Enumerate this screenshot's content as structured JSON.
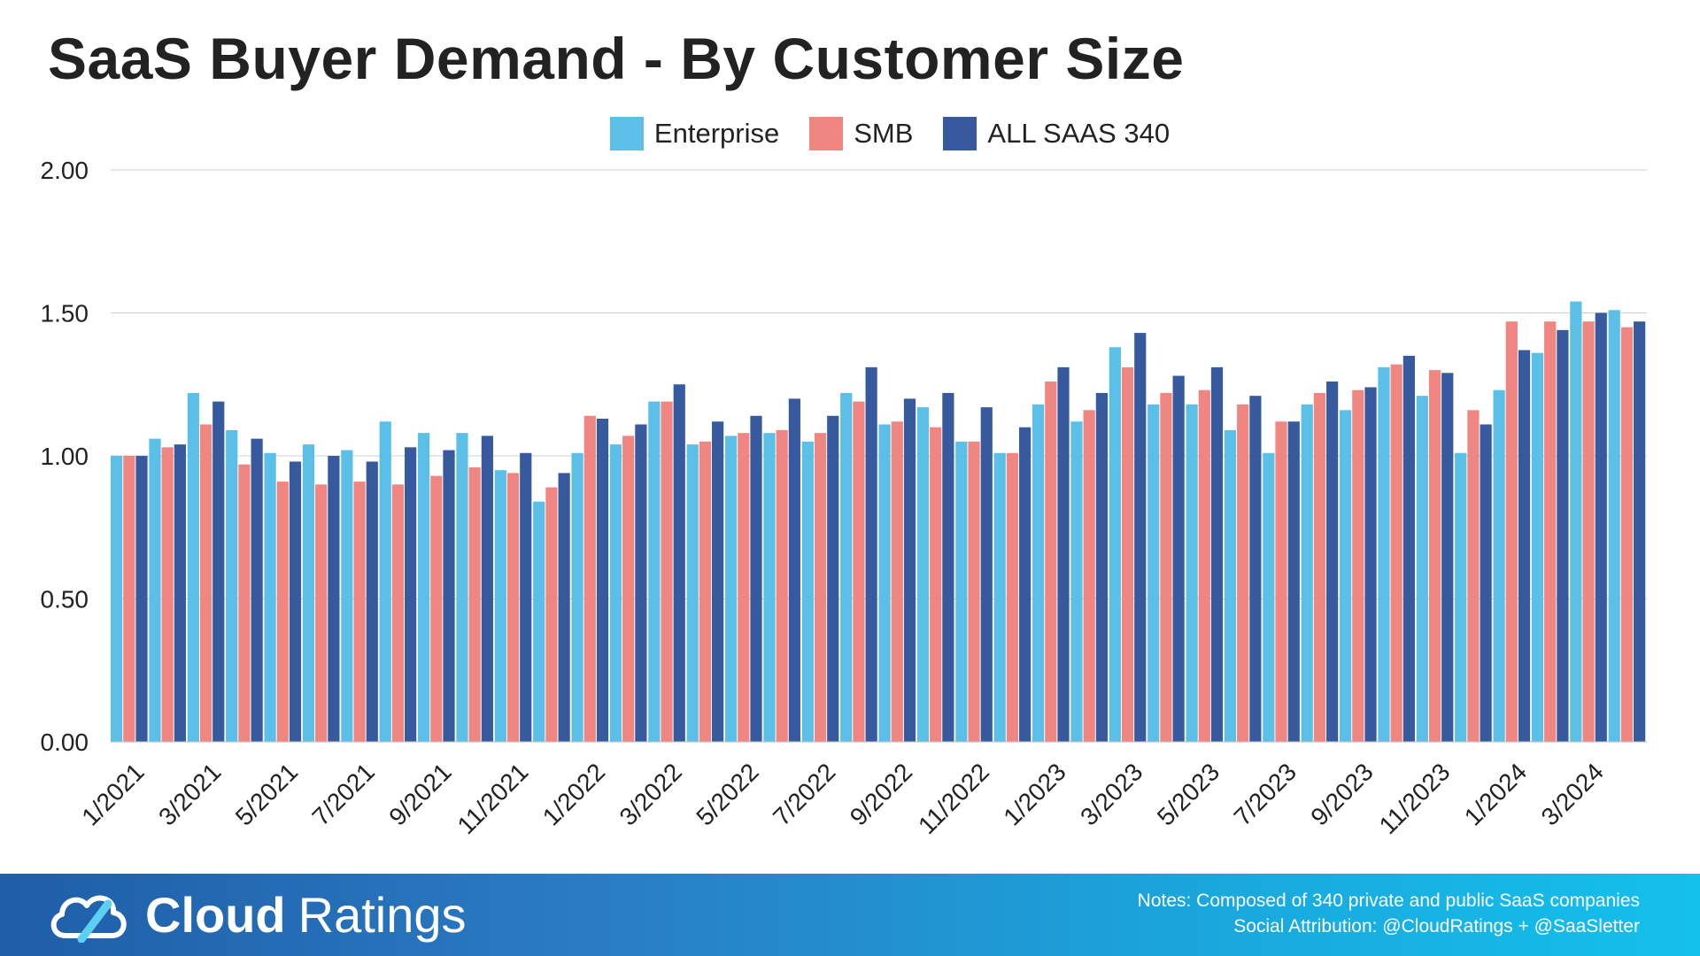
{
  "chart_data": {
    "type": "bar",
    "title": "SaaS Buyer Demand - By Customer Size",
    "xlabel": "",
    "ylabel": "",
    "ylim": [
      0,
      2
    ],
    "yticks": [
      "0.00",
      "0.50",
      "1.00",
      "1.50",
      "2.00"
    ],
    "grid": true,
    "legend_position": "top-center",
    "categories": [
      "1/2021",
      "2/2021",
      "3/2021",
      "4/2021",
      "5/2021",
      "6/2021",
      "7/2021",
      "8/2021",
      "9/2021",
      "10/2021",
      "11/2021",
      "12/2021",
      "1/2022",
      "2/2022",
      "3/2022",
      "4/2022",
      "5/2022",
      "6/2022",
      "7/2022",
      "8/2022",
      "9/2022",
      "10/2022",
      "11/2022",
      "12/2022",
      "1/2023",
      "2/2023",
      "3/2023",
      "4/2023",
      "5/2023",
      "6/2023",
      "7/2023",
      "8/2023",
      "9/2023",
      "10/2023",
      "11/2023",
      "12/2023",
      "1/2024",
      "2/2024",
      "3/2024",
      "4/2024"
    ],
    "xtick_labels": [
      "1/2021",
      "3/2021",
      "5/2021",
      "7/2021",
      "9/2021",
      "11/2021",
      "1/2022",
      "3/2022",
      "5/2022",
      "7/2022",
      "9/2022",
      "11/2022",
      "1/2023",
      "3/2023",
      "5/2023",
      "7/2023",
      "9/2023",
      "11/2023",
      "1/2024",
      "3/2024"
    ],
    "series": [
      {
        "name": "Enterprise",
        "color": "#5bbfe8",
        "values": [
          1.0,
          1.06,
          1.22,
          1.09,
          1.01,
          1.04,
          1.02,
          1.12,
          1.08,
          1.08,
          0.95,
          0.84,
          1.01,
          1.04,
          1.19,
          1.04,
          1.07,
          1.08,
          1.05,
          1.22,
          1.11,
          1.17,
          1.05,
          1.01,
          1.18,
          1.12,
          1.38,
          1.18,
          1.18,
          1.09,
          1.01,
          1.18,
          1.16,
          1.31,
          1.21,
          1.01,
          1.23,
          1.36,
          1.54,
          1.51
        ]
      },
      {
        "name": "SMB",
        "color": "#f08682",
        "values": [
          1.0,
          1.03,
          1.11,
          0.97,
          0.91,
          0.9,
          0.91,
          0.9,
          0.93,
          0.96,
          0.94,
          0.89,
          1.14,
          1.07,
          1.19,
          1.05,
          1.08,
          1.09,
          1.08,
          1.19,
          1.12,
          1.1,
          1.05,
          1.01,
          1.26,
          1.16,
          1.31,
          1.22,
          1.23,
          1.18,
          1.12,
          1.22,
          1.23,
          1.32,
          1.3,
          1.16,
          1.47,
          1.47,
          1.47,
          1.45
        ]
      },
      {
        "name": "ALL SAAS 340",
        "color": "#375a9e",
        "values": [
          1.0,
          1.04,
          1.19,
          1.06,
          0.98,
          1.0,
          0.98,
          1.03,
          1.02,
          1.07,
          1.01,
          0.94,
          1.13,
          1.11,
          1.25,
          1.12,
          1.14,
          1.2,
          1.14,
          1.31,
          1.2,
          1.22,
          1.17,
          1.1,
          1.31,
          1.22,
          1.43,
          1.28,
          1.31,
          1.21,
          1.12,
          1.26,
          1.24,
          1.35,
          1.29,
          1.11,
          1.37,
          1.44,
          1.5,
          1.47
        ]
      }
    ]
  },
  "footer": {
    "logo_bold": "Cloud",
    "logo_light": "Ratings",
    "notes": "Notes: Composed of 340 private and public SaaS companies",
    "attribution": "Social Attribution: @CloudRatings + @SaaSletter"
  }
}
